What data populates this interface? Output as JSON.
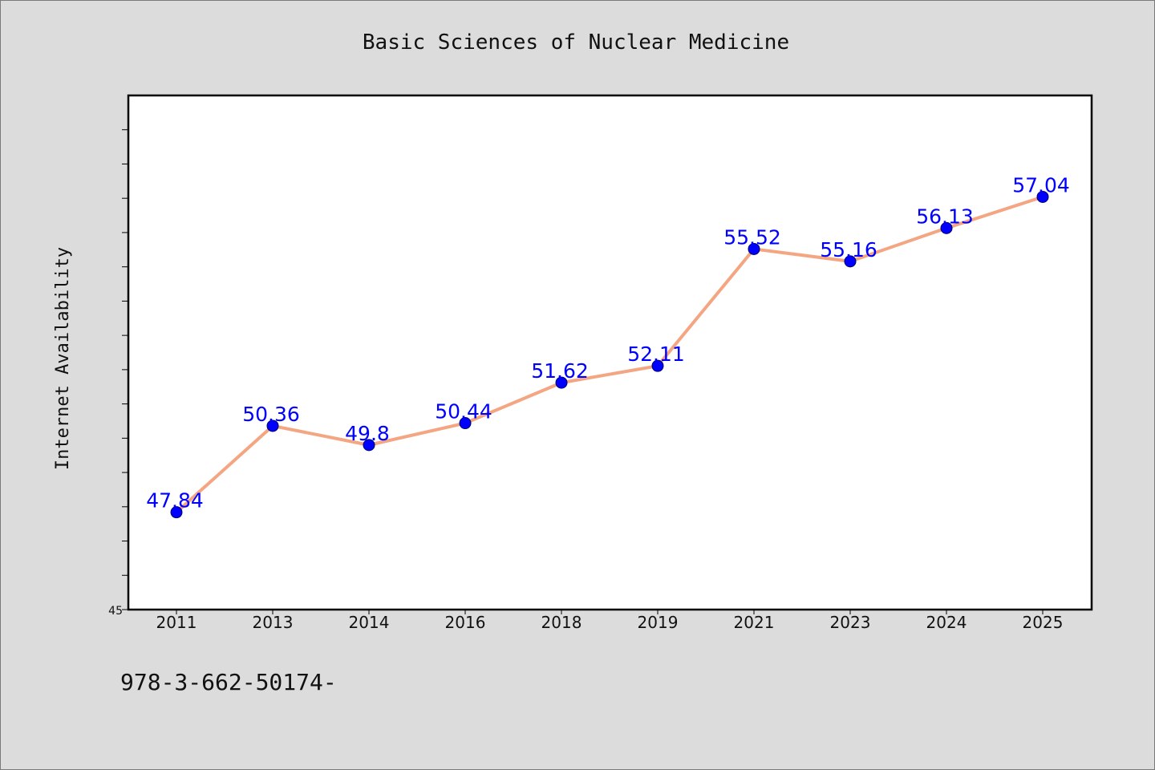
{
  "chart_data": {
    "type": "line",
    "title": "Basic Sciences of Nuclear Medicine",
    "xlabel": "",
    "ylabel": "Internet Availability",
    "categories": [
      "2011",
      "2013",
      "2014",
      "2016",
      "2018",
      "2019",
      "2021",
      "2023",
      "2024",
      "2025"
    ],
    "values": [
      47.84,
      50.36,
      49.8,
      50.44,
      51.62,
      52.11,
      55.52,
      55.16,
      56.13,
      57.04
    ],
    "data_labels": [
      "47.84",
      "50.36",
      "49.8",
      "50.44",
      "51.62",
      "52.11",
      "55.52",
      "55.16",
      "56.13",
      "57.04"
    ],
    "ylim": [
      45,
      60
    ],
    "y_tick_labels": [
      "45"
    ],
    "grid": false,
    "legend": "none",
    "colors": {
      "line": "#f4a582",
      "marker": "#0000ff",
      "label": "#0000ff"
    }
  },
  "footer": {
    "caption": "978-3-662-50174-"
  }
}
